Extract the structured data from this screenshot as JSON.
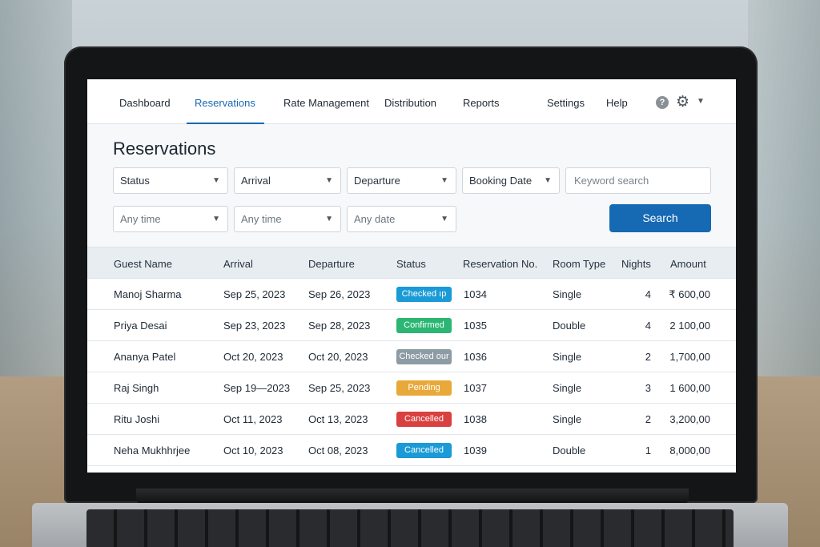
{
  "nav": {
    "items": [
      {
        "label": "Dashboard",
        "active": false
      },
      {
        "label": "Reservations",
        "active": true
      },
      {
        "label": "Rate Management",
        "active": false
      },
      {
        "label": "Distribution",
        "active": false
      },
      {
        "label": "Reports",
        "active": false
      }
    ],
    "settings_label": "Settings",
    "help_label": "Help",
    "help_icon_glyph": "?",
    "icons": [
      "help-icon",
      "gear-icon",
      "chevron-down-icon"
    ]
  },
  "page": {
    "title": "Reservations"
  },
  "filters": {
    "row1": [
      {
        "label": "Status"
      },
      {
        "label": "Arrival"
      },
      {
        "label": "Departure"
      },
      {
        "label": "Booking Date"
      }
    ],
    "row2": [
      {
        "label": "Any time"
      },
      {
        "label": "Any time"
      },
      {
        "label": "Any date"
      }
    ],
    "keyword_placeholder": "Keyword search",
    "search_label": "Search"
  },
  "table": {
    "columns": [
      "Guest Name",
      "Arrival",
      "Departure",
      "Status",
      "Reservation No.",
      "Room Type",
      "Nights",
      "Amount"
    ],
    "rows": [
      {
        "guest": "Manoj Sharma",
        "arrival": "Sep 25, 2023",
        "departure": "Sep 26, 2023",
        "status": "Checked ıp",
        "status_color": "#1a9ad6",
        "res_no": "1034",
        "room": "Single",
        "nights": "4",
        "amount": "₹ 600,00"
      },
      {
        "guest": "Priya Desai",
        "arrival": "Sep 23, 2023",
        "departure": "Sep 28, 2023",
        "status": "Confirmed",
        "status_color": "#2bb673",
        "res_no": "1035",
        "room": "Double",
        "nights": "4",
        "amount": "2 100,00"
      },
      {
        "guest": "Ananya Patel",
        "arrival": "Oct 20, 2023",
        "departure": "Oct 20, 2023",
        "status": "Checked our",
        "status_color": "#8c9ba4",
        "res_no": "1036",
        "room": "Single",
        "nights": "2",
        "amount": "1,700,00"
      },
      {
        "guest": "Raj Singh",
        "arrival": "Sep 19—2023",
        "departure": "Sep 25, 2023",
        "status": "Pending",
        "status_color": "#e8a93a",
        "res_no": "1037",
        "room": "Single",
        "nights": "3",
        "amount": "1 600,00"
      },
      {
        "guest": "Ritu Joshi",
        "arrival": "Oct 11, 2023",
        "departure": "Oct 13, 2023",
        "status": "Cancelled",
        "status_color": "#d94040",
        "res_no": "1038",
        "room": "Single",
        "nights": "2",
        "amount": "3,200,00"
      },
      {
        "guest": "Neha Mukhhrjee",
        "arrival": "Oct 10, 2023",
        "departure": "Oct 08, 2023",
        "status": "Cancelled",
        "status_color": "#1a9ad6",
        "res_no": "1039",
        "room": "Double",
        "nights": "1",
        "amount": "8,000,00"
      }
    ]
  }
}
